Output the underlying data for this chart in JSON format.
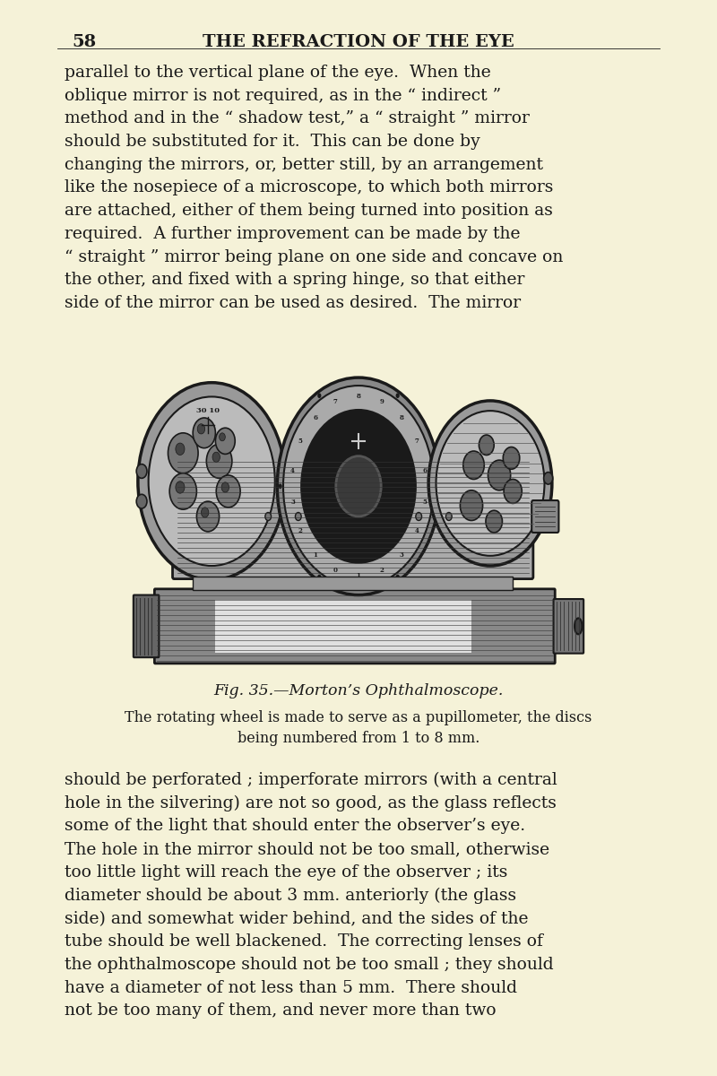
{
  "bg_color": "#f5f2d8",
  "page_number": "58",
  "header": "THE REFRACTION OF THE EYE",
  "header_fontsize": 14,
  "page_num_fontsize": 14,
  "body_fontsize": 13.5,
  "caption_title": "Fig. 35.—Morton’s Ophthalmoscope.",
  "caption_subtitle": "The rotating wheel is made to serve as a pupillometer, the discs\nbeing numbered from 1 to 8 mm.",
  "para1": "parallel to the vertical plane of the eye.  When the\noblique mirror is not required, as in the “ indirect ”\nmethod and in the “ shadow test,” a “ straight ” mirror\nshould be substituted for it.  This can be done by\nchanging the mirrors, or, better still, by an arrangement\nlike the nosepiece of a microscope, to which both mirrors\nare attached, either of them being turned into position as\nrequired.  A further improvement can be made by the\n“ straight ” mirror being plane on one side and concave on\nthe other, and fixed with a spring hinge, so that either\nside of the mirror can be used as desired.  The mirror",
  "para2": "should be perforated ; imperforate mirrors (with a central\nhole in the silvering) are not so good, as the glass reflects\nsome of the light that should enter the observer’s eye.\nThe hole in the mirror should not be too small, otherwise\ntoo little light will reach the eye of the observer ; its\ndiameter should be about 3 mm. anteriorly (the glass\nside) and somewhat wider behind, and the sides of the\ntube should be well blackened.  The correcting lenses of\nthe ophthalmoscope should not be too small ; they should\nhave a diameter of not less than 5 mm.  There should\nnot be too many of them, and never more than two",
  "text_color": "#1a1a1a",
  "dark": "#1a1a1a"
}
